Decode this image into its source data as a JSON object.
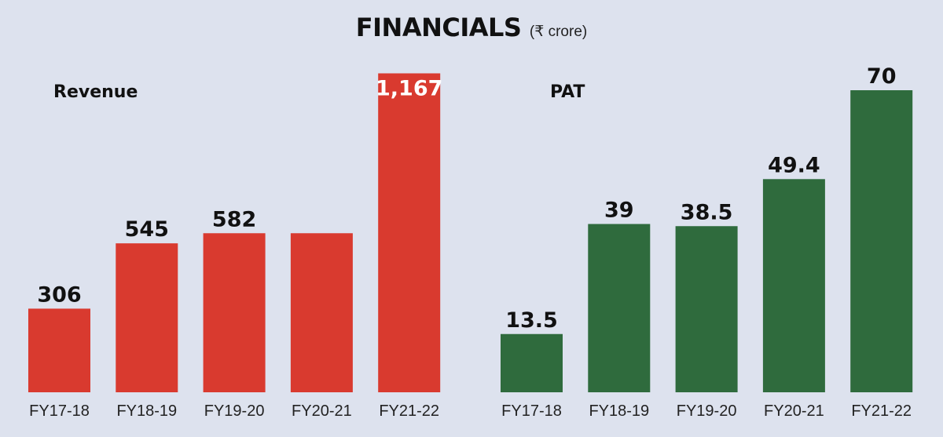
{
  "header": {
    "title": "FINANCIALS",
    "unit": "(₹ crore)"
  },
  "chart_data": [
    {
      "type": "bar",
      "title": "Revenue",
      "categories": [
        "FY17-18",
        "FY18-19",
        "FY19-20",
        "FY20-21",
        "FY21-22"
      ],
      "values": [
        306,
        545,
        582,
        582,
        1167
      ],
      "data_labels": [
        "306",
        "545",
        "582",
        "",
        "1,167"
      ],
      "color": "#d93a2f",
      "ylim": [
        0,
        1200
      ],
      "grid": false
    },
    {
      "type": "bar",
      "title": "PAT",
      "categories": [
        "FY17-18",
        "FY18-19",
        "FY19-20",
        "FY20-21",
        "FY21-22"
      ],
      "values": [
        13.5,
        39,
        38.5,
        49.4,
        70
      ],
      "data_labels": [
        "13.5",
        "39",
        "38.5",
        "49.4",
        "70"
      ],
      "color": "#2f6b3d",
      "ylim": [
        0,
        76
      ],
      "grid": false
    }
  ]
}
